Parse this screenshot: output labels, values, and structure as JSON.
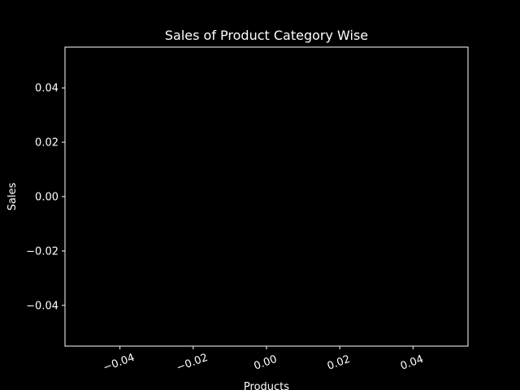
{
  "chart_data": {
    "type": "bar",
    "title": "Sales of Product Category Wise",
    "xlabel": "Products",
    "ylabel": "Sales",
    "categories": [],
    "values": [],
    "xlim": [
      -0.055,
      0.055
    ],
    "ylim": [
      -0.055,
      0.055
    ],
    "x_ticks": [
      -0.04,
      -0.02,
      0.0,
      0.02,
      0.04
    ],
    "x_tick_labels": [
      "−0.04",
      "−0.02",
      "0.00",
      "0.02",
      "0.04"
    ],
    "y_ticks": [
      -0.04,
      -0.02,
      0.0,
      0.02,
      0.04
    ],
    "y_tick_labels": [
      "−0.04",
      "−0.02",
      "0.00",
      "0.02",
      "0.04"
    ],
    "x_tick_rotation_deg": 20,
    "grid": false,
    "legend": "none"
  },
  "colors": {
    "background": "#000000",
    "axes": "#ffffff",
    "text": "#ffffff"
  }
}
